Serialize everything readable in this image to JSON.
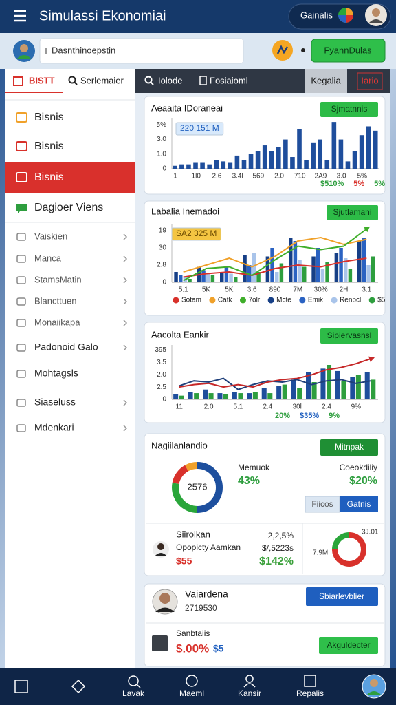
{
  "header": {
    "title": "Simulassi Ekonomiai",
    "account": "Gainalis"
  },
  "search": {
    "placeholder": "Dasnthinoepstin",
    "button": "FyannDulas"
  },
  "sidebar": {
    "tabs": [
      "BISTT",
      "Serlemaier"
    ],
    "items": [
      "Bisnis",
      "Bisnis",
      "Bisnis",
      "Dagioer Viens",
      "Vaiskien",
      "Manca",
      "StamsMatin",
      "Blancttuen",
      "Monaiikapa",
      "Padonoid Galo",
      "Mohtagsls",
      "Siaseluss",
      "Mdenkari"
    ]
  },
  "tabs": [
    "Iolode",
    "Fosiaioml",
    "Kegalia",
    "Iario"
  ],
  "chart_data": [
    {
      "type": "bar",
      "title": "Aeaaita IDoraneai",
      "button": "Sjmatnnis",
      "badge": {
        "text": "220 151 M",
        "color": "#d8e9fb"
      },
      "categories": [
        "1",
        null,
        null,
        "1l0",
        null,
        null,
        "2.6",
        null,
        null,
        "3.4l",
        null,
        null,
        "569",
        null,
        null,
        "2.0",
        null,
        null,
        "710",
        null,
        null,
        "2A9",
        null,
        null,
        "3.0",
        null,
        null,
        "5%",
        null,
        null
      ],
      "series": [
        {
          "color": "#1f4e9c",
          "values": [
            0.2,
            0.3,
            0.3,
            0.4,
            0.4,
            0.3,
            0.6,
            0.5,
            0.4,
            0.9,
            0.6,
            1.0,
            1.2,
            1.6,
            1.2,
            1.5,
            2.0,
            0.8,
            2.7,
            0.6,
            1.8,
            2.0,
            0.6,
            3.2,
            2.0,
            0.5,
            1.2,
            2.3,
            2.9,
            2.6
          ]
        }
      ],
      "ylim": [
        0,
        3.3
      ],
      "yticks": [
        0,
        {
          "value": 1,
          "label": "1.0"
        },
        {
          "value": 2,
          "label": "3.0"
        },
        {
          "value": 3,
          "label": "5%"
        }
      ],
      "grid": false,
      "annotations": [
        {
          "text": "$510%",
          "color": "#2e9e3e"
        },
        {
          "text": "5%",
          "color": "#d8312b"
        },
        {
          "text": "5%",
          "color": "#2e9e3e"
        }
      ]
    },
    {
      "type": "bar",
      "title": "Labalia Inemadoi",
      "button": "Sjutlamani",
      "badge": {
        "text": "SA2 325 M",
        "color": "#f4c542"
      },
      "categories": [
        "5.1",
        "5K",
        "5K",
        "3.6",
        "890",
        "7M",
        "30%",
        "2H",
        "3.1"
      ],
      "series": [
        {
          "name": "Sotam",
          "color": "#d8312b",
          "type": "line",
          "values": [
            0.3,
            0.5,
            0.6,
            0.4,
            0.8,
            1.0,
            0.9,
            1.2,
            1.4
          ]
        },
        {
          "name": "Catk",
          "color": "#f0a12a",
          "type": "line",
          "values": [
            0.6,
            1.0,
            1.4,
            0.9,
            1.5,
            2.4,
            2.6,
            2.2,
            2.5
          ]
        },
        {
          "name": "7olr",
          "color": "#3fae2a",
          "type": "line",
          "arrow": true,
          "values": [
            0.1,
            0.8,
            0.9,
            0.4,
            1.3,
            2.1,
            1.9,
            2.1,
            3.1
          ]
        },
        {
          "name": "Mcte",
          "color": "#163f86",
          "values": [
            0.6,
            0.9,
            0.6,
            1.6,
            1.5,
            2.6,
            1.5,
            1.7,
            2.4
          ]
        },
        {
          "name": "Emik",
          "color": "#2a62c2",
          "values": [
            0.4,
            0.7,
            0.9,
            1.0,
            2.0,
            2.4,
            2.0,
            2.0,
            2.6
          ]
        },
        {
          "name": "Renpcl",
          "color": "#a9c4ea",
          "values": [
            0.3,
            0.5,
            0.5,
            1.7,
            0.6,
            1.3,
            0.8,
            1.4,
            1.0
          ]
        },
        {
          "name": "$5",
          "color": "#2e9e3e",
          "values": [
            0.2,
            0.4,
            0.3,
            0.6,
            1.1,
            0.9,
            1.2,
            0.8,
            1.5
          ]
        }
      ],
      "ylim": [
        0,
        3.2
      ],
      "yticks": [
        0,
        {
          "value": 1,
          "label": "2.8"
        },
        {
          "value": 2,
          "label": "30"
        },
        {
          "value": 3,
          "label": "19"
        }
      ],
      "grid": false,
      "legend": "bottom"
    },
    {
      "type": "bar",
      "title": "Aacolta Eankir",
      "button": "Sipiervasnsl",
      "categories": [
        "11",
        null,
        "2.0",
        null,
        "5.1",
        null,
        "2.4",
        null,
        "30l",
        null,
        "2.4",
        null,
        "9%",
        null
      ],
      "series": [
        {
          "color": "#1f4e9c",
          "values": [
            0.4,
            0.6,
            0.8,
            0.5,
            0.6,
            0.5,
            0.9,
            1.1,
            1.6,
            2.2,
            2.5,
            2.3,
            1.8,
            2.2
          ]
        },
        {
          "color": "#2e9e3e",
          "values": [
            0.3,
            0.5,
            0.5,
            0.4,
            0.5,
            0.6,
            0.5,
            1.2,
            0.9,
            1.4,
            2.8,
            1.5,
            2.0,
            1.6
          ]
        },
        {
          "color": "#1f3f7a",
          "type": "line",
          "values": [
            1.1,
            1.5,
            1.4,
            1.7,
            0.8,
            1.2,
            1.5,
            1.4,
            1.6,
            1.2,
            1.5,
            1.6,
            1.3,
            1.5
          ]
        },
        {
          "color": "#c62828",
          "type": "line",
          "arrow": true,
          "values": [
            1.0,
            1.2,
            1.3,
            1.0,
            1.2,
            1.0,
            1.4,
            1.6,
            1.7,
            2.0,
            2.4,
            2.6,
            2.9,
            3.3
          ]
        }
      ],
      "ylim": [
        0,
        4.2
      ],
      "yticks": [
        0,
        {
          "value": 1,
          "label": "2.5"
        },
        {
          "value": 2,
          "label": "2.0"
        },
        {
          "value": 3,
          "label": "3.5"
        },
        {
          "value": 4,
          "label": "395"
        }
      ],
      "grid": false,
      "annotations": [
        {
          "text": "20%",
          "color": "#2e9e3e"
        },
        {
          "text": "$35%",
          "color": "#1f5fbf"
        },
        {
          "text": "9%",
          "color": "#2e9e3e"
        }
      ]
    }
  ],
  "summary": {
    "title": "Nagiilanlandio",
    "button": "Mitnpak",
    "donut": {
      "label": "2576",
      "values": [
        50,
        28,
        14,
        8
      ],
      "colors": [
        "#1d4f9e",
        "#2aa63a",
        "#d8312b",
        "#f0a12a"
      ]
    },
    "stats": [
      {
        "label": "Memuok",
        "value": "43%"
      },
      {
        "label": "Coeokdiliy",
        "value": "$20%"
      }
    ],
    "toggle": [
      "Fiicos",
      "Gatnis"
    ],
    "person": {
      "name": "Siirolkan",
      "role": "Opopicty Aamkan",
      "amount": "$55",
      "figures": [
        "2,2,5%",
        "$/,5223s",
        "$142%"
      ]
    },
    "mini": {
      "label": "7.9M",
      "top": "3J.01",
      "values": [
        75,
        25
      ],
      "colors": [
        "#d8312b",
        "#2aa63a"
      ]
    }
  },
  "profile": {
    "name": "Vaiardena",
    "id": "2719530",
    "button": "Sbiarlevblier",
    "label": "Sanbtaiis",
    "value": "$.00%",
    "sub": "$5",
    "action": "Akguldecter"
  },
  "nav": [
    "Lavak",
    "Maeml",
    "Kansir",
    "Repalis"
  ]
}
